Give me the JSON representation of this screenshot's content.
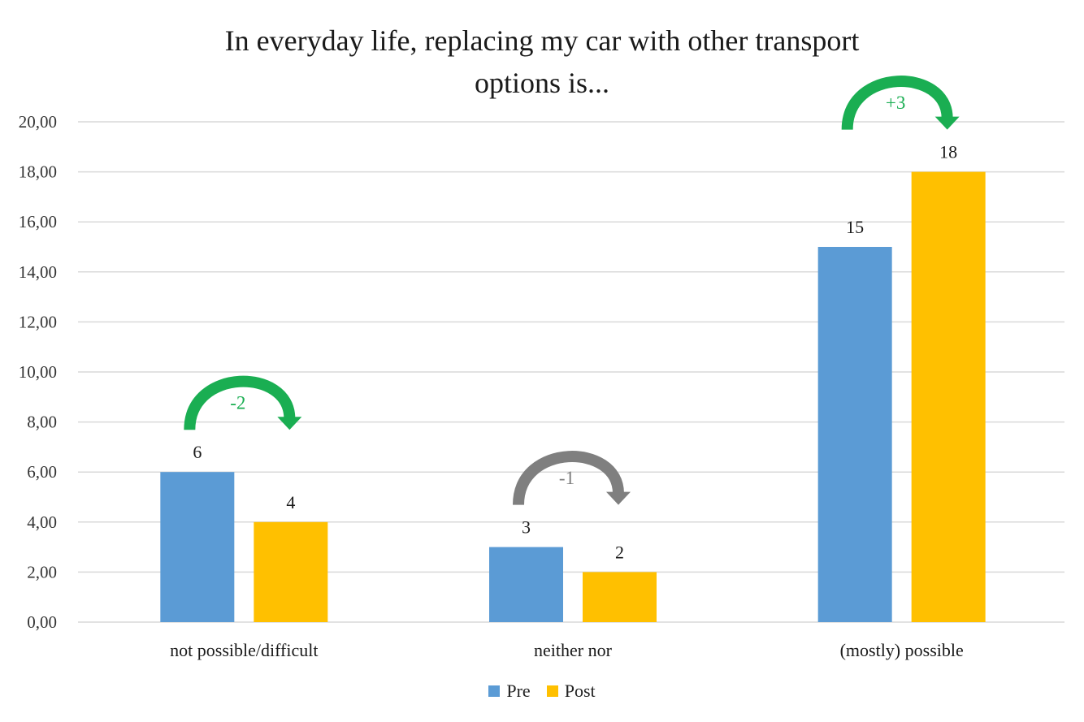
{
  "title_lines": [
    "In everyday life, replacing my car with other transport",
    "options is..."
  ],
  "colors": {
    "pre": "#5B9BD5",
    "post": "#FFC000",
    "grid": "#D9D9D9",
    "arrow_green": "#1AAE52",
    "arrow_gray": "#7F7F7F"
  },
  "chart_data": {
    "type": "bar",
    "title": "In everyday life, replacing my car with other transport options is...",
    "categories": [
      "not possible/difficult",
      "neither nor",
      "(mostly) possible"
    ],
    "series": [
      {
        "name": "Pre",
        "values": [
          6,
          3,
          15
        ]
      },
      {
        "name": "Post",
        "values": [
          4,
          2,
          18
        ]
      }
    ],
    "ylim": [
      0,
      20
    ],
    "yticks": [
      "0,00",
      "2,00",
      "4,00",
      "6,00",
      "8,00",
      "10,00",
      "12,00",
      "14,00",
      "16,00",
      "18,00",
      "20,00"
    ],
    "grid": true,
    "legend": "bottom",
    "annotations": [
      {
        "category": "not possible/difficult",
        "label": "-2",
        "color": "green"
      },
      {
        "category": "neither nor",
        "label": "-1",
        "color": "gray"
      },
      {
        "category": "(mostly) possible",
        "label": "+3",
        "color": "green"
      }
    ]
  }
}
